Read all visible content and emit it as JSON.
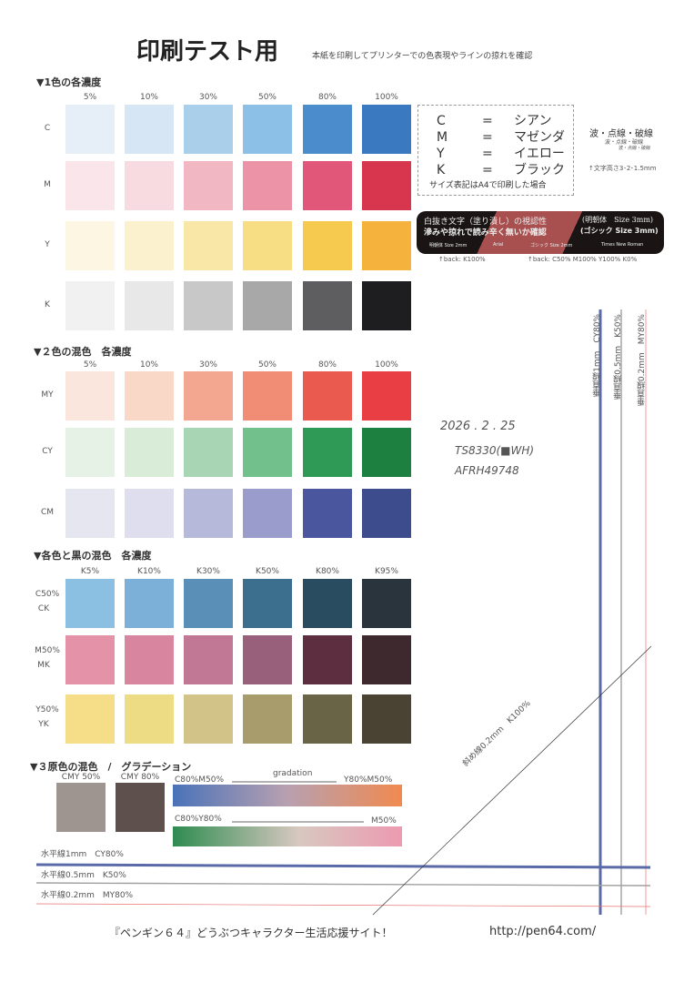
{
  "header": {
    "title": "印刷テスト用",
    "subtitle": "本紙を印刷してプリンターでの色表現やラインの掠れを確認"
  },
  "section1": {
    "heading": "▼1色の各濃度",
    "columns": [
      "5%",
      "10%",
      "30%",
      "50%",
      "80%",
      "100%"
    ],
    "rows": [
      {
        "label": "C",
        "colors": [
          "#e6eef8",
          "#d7e6f4",
          "#a9cfea",
          "#8cc0e6",
          "#4a8ccc",
          "#3a78c0"
        ]
      },
      {
        "label": "M",
        "colors": [
          "#fae6ea",
          "#f7dbe0",
          "#f1b8c4",
          "#ec93a8",
          "#e0577a",
          "#d8354e"
        ]
      },
      {
        "label": "Y",
        "colors": [
          "#fcf6e2",
          "#fbf1cf",
          "#f8e7a6",
          "#f7de85",
          "#f6c94f",
          "#f5b33d"
        ]
      },
      {
        "label": "K",
        "colors": [
          "#f1f1f2",
          "#e8e8e9",
          "#c8c8c9",
          "#a8a8a9",
          "#5e5e60",
          "#1e1e20"
        ]
      }
    ]
  },
  "section2": {
    "heading": "▼２色の混色　各濃度",
    "columns": [
      "5%",
      "10%",
      "30%",
      "50%",
      "80%",
      "100%"
    ],
    "rows": [
      {
        "label": "MY",
        "colors": [
          "#fbe6dd",
          "#f9d8c8",
          "#f4a790",
          "#f08d74",
          "#ea5a4e",
          "#e83e44"
        ]
      },
      {
        "label": "CY",
        "colors": [
          "#e6f2e6",
          "#d8ecd7",
          "#a8d6b4",
          "#72c08c",
          "#2e9a55",
          "#1e8040"
        ]
      },
      {
        "label": "CM",
        "colors": [
          "#e6e6f1",
          "#dedeee",
          "#b7b9da",
          "#9a9ccc",
          "#4a579e",
          "#3c4c8c"
        ]
      }
    ]
  },
  "section3": {
    "heading": "▼各色と黒の混色　各濃度",
    "columns": [
      "K5%",
      "K10%",
      "K30%",
      "K50%",
      "K80%",
      "K95%"
    ],
    "rows": [
      {
        "label": "C50%",
        "label2": "CK",
        "colors": [
          "#8cc0e2",
          "#7cb0d8",
          "#5a90b8",
          "#3c6e8e",
          "#2a4c60",
          "#2a343c"
        ]
      },
      {
        "label": "M50%",
        "label2": "MK",
        "colors": [
          "#e492a8",
          "#d886a0",
          "#c07894",
          "#98607a",
          "#5c2e40",
          "#3e2a2e"
        ]
      },
      {
        "label": "Y50%",
        "label2": "YK",
        "colors": [
          "#f6de88",
          "#eedc84",
          "#d2c488",
          "#a89c6c",
          "#6a6446",
          "#4a4232"
        ]
      }
    ]
  },
  "section4": {
    "heading": "▼３原色の混色　/　グラデーション",
    "swatches": [
      {
        "label": "CMY 50%",
        "color": "#9e9490"
      },
      {
        "label": "CMY 80%",
        "color": "#5e504c"
      }
    ],
    "gradient1": {
      "left": "C80%M50%",
      "middle": "gradation",
      "right": "Y80%M50%"
    },
    "gradient2": {
      "left": "C80%Y80%",
      "right": "M50%"
    }
  },
  "legend": {
    "lines": [
      [
        "C",
        "=",
        "シアン"
      ],
      [
        "M",
        "=",
        "マゼンダ"
      ],
      [
        "Y",
        "=",
        "イエロー"
      ],
      [
        "K",
        "=",
        "ブラック"
      ]
    ],
    "note": "サイズ表記はA4で印刷した場合"
  },
  "sidenote": {
    "title": "波・点線・破線",
    "sub1": "波・点線・破線",
    "sub2": "波・点線・破線",
    "size": "↑文字高さ3･2･1.5mm"
  },
  "banner": {
    "line1": "白抜き文字（塗り潰し）の視認性",
    "line2": "滲みや掠れで読み辛く無いか確認",
    "right1": "(明朝体　Size 3mm)",
    "right2": "(ゴシック Size 3mm)",
    "fonts": [
      "明朝体 Size 2mm",
      "Arial",
      "ゴシック Size 2mm",
      "Times New Roman"
    ],
    "back1": "↑back: K100%",
    "back2": "↑back: C50% M100% Y100% K0%"
  },
  "handwriting": {
    "date": "2026 . 2 . 25",
    "model": "TS8330(■WH)",
    "serial": "AFRH49748"
  },
  "lines": {
    "vertical": [
      "垂直線1mm　CY80%",
      "垂直線0.5mm　K50%",
      "垂直線0.2mm　MY80%"
    ],
    "horizontal": [
      "水平線1mm　CY80%",
      "水平線0.5mm　K50%",
      "水平線0.2mm　MY80%"
    ],
    "diagonal": "斜め線0.2mm　K100%"
  },
  "footer": {
    "text": "『ペンギン６４』どうぶつキャラクター生活応援サイト！",
    "url": "http://pen64.com/"
  }
}
